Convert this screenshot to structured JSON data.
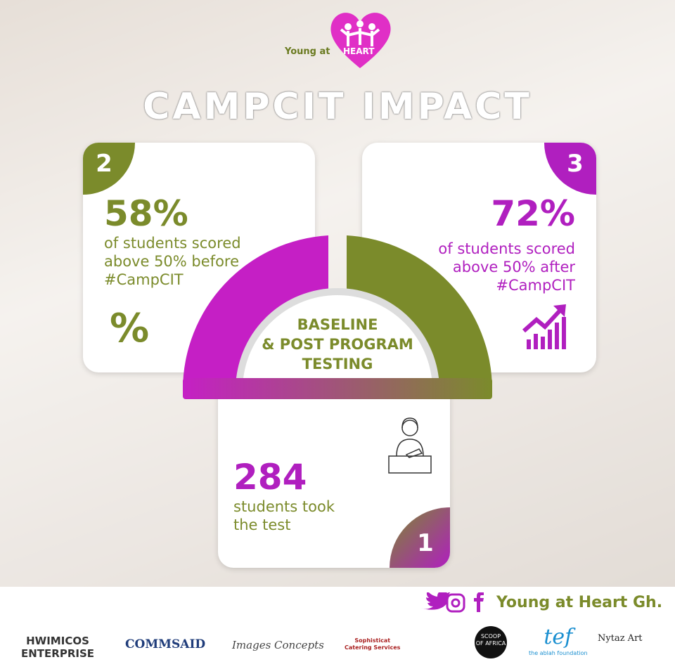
{
  "logo": {
    "line1": "Young at",
    "line2": "HEART"
  },
  "title": "CAMPCIT IMPACT",
  "card_before": {
    "step": "2",
    "stat": "58%",
    "description": [
      "of students scored",
      "above 50% before",
      "#CampCIT"
    ],
    "icon": "%"
  },
  "card_after": {
    "step": "3",
    "stat": "72%",
    "description": [
      "of students scored",
      "above 50% after",
      "#CampCIT"
    ]
  },
  "center": {
    "lines": [
      "BASELINE",
      "& POST PROGRAM",
      "TESTING"
    ]
  },
  "card_total": {
    "step": "1",
    "stat": "284",
    "description": [
      "students took",
      "the test"
    ]
  },
  "social": {
    "handle": "Young at Heart Gh."
  },
  "sponsors": [
    [
      "HWIMICOS",
      "ENTERPRISE"
    ],
    [
      "COMMSAID"
    ],
    [
      "Images Concepts"
    ],
    [
      "Sophisticat",
      "Catering Services"
    ],
    [
      "SCOOP",
      "OF AFRICA"
    ],
    [
      "tef",
      "the ablah foundation"
    ],
    [
      "Nytaz Art"
    ]
  ]
}
